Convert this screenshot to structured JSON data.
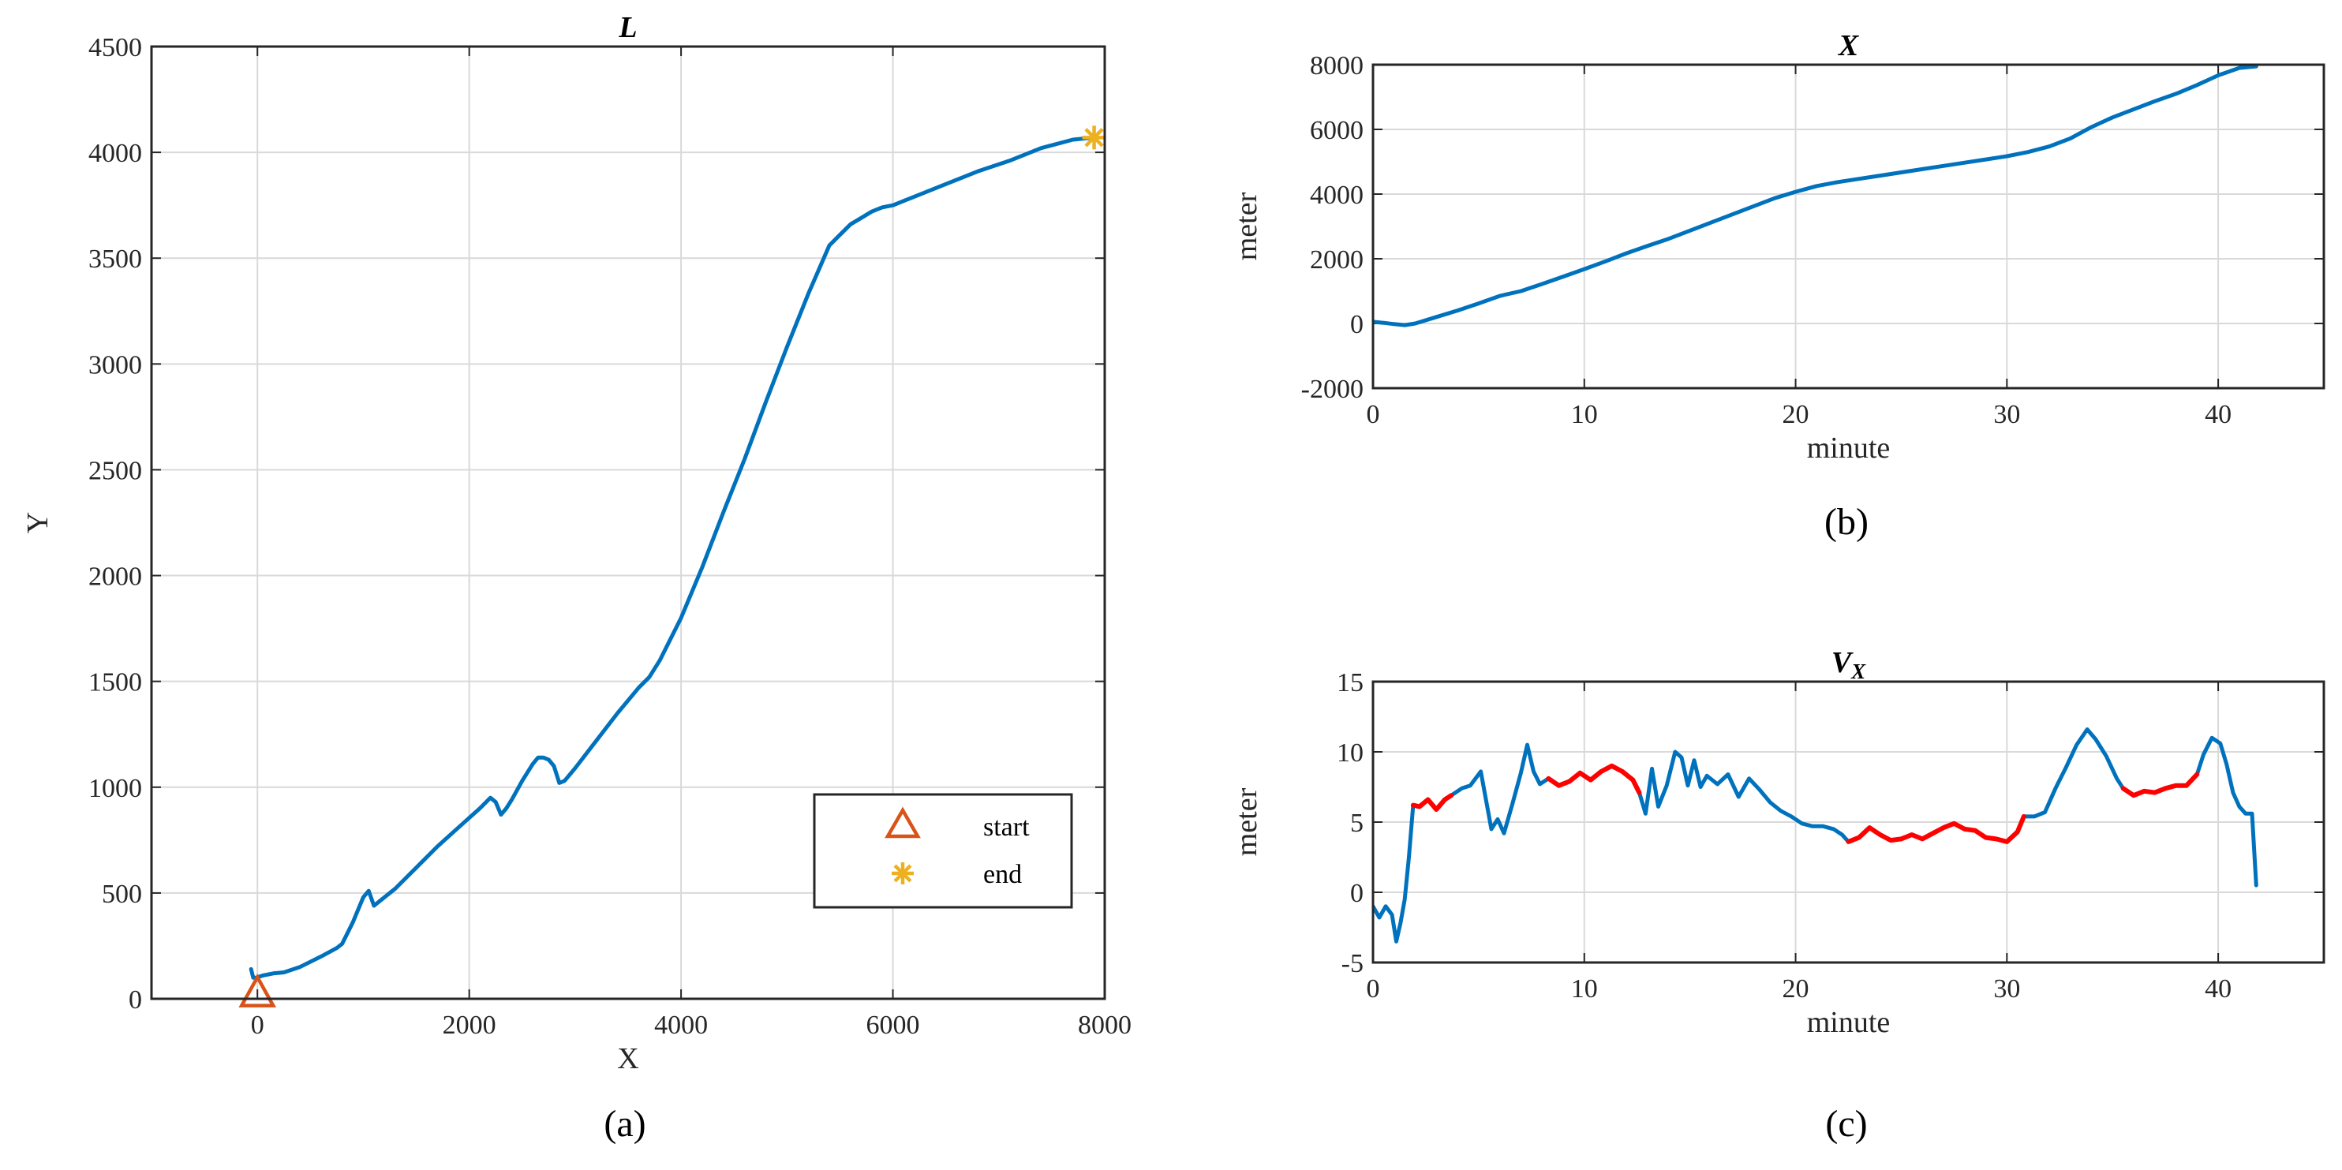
{
  "colors": {
    "line": "#0072BD",
    "highlight": "#FF0000",
    "start": "#D95319",
    "end": "#EDB120",
    "grid": "#D9D9D9"
  },
  "captions": {
    "a": "(a)",
    "b": "(b)",
    "c": "(c)"
  },
  "chart_data": [
    {
      "id": "a",
      "type": "line",
      "title": "L",
      "xlabel": "X",
      "ylabel": "Y",
      "xlim": [
        -1000,
        8000
      ],
      "ylim": [
        0,
        4500
      ],
      "xticks": [
        0,
        2000,
        4000,
        6000,
        8000
      ],
      "yticks": [
        0,
        500,
        1000,
        1500,
        2000,
        2500,
        3000,
        3500,
        4000,
        4500
      ],
      "grid": true,
      "legend": {
        "placement": "bottom-right",
        "entries": [
          {
            "label": "start",
            "marker": "triangle"
          },
          {
            "label": "end",
            "marker": "asterisk"
          }
        ]
      },
      "start_point": [
        0,
        20
      ],
      "end_point": [
        7900,
        4070
      ],
      "series": [
        {
          "name": "trajectory",
          "x": [
            -60,
            -40,
            -10,
            50,
            150,
            250,
            400,
            600,
            750,
            800,
            850,
            900,
            950,
            1000,
            1050,
            1100,
            1300,
            1500,
            1700,
            1900,
            2100,
            2200,
            2250,
            2300,
            2350,
            2400,
            2500,
            2600,
            2650,
            2700,
            2750,
            2800,
            2850,
            2900,
            3000,
            3200,
            3400,
            3600,
            3700,
            3800,
            3900,
            4000,
            4200,
            4400,
            4600,
            4800,
            5000,
            5200,
            5400,
            5500,
            5600,
            5700,
            5800,
            5900,
            6000,
            6200,
            6500,
            6800,
            7100,
            7400,
            7700,
            7900
          ],
          "y": [
            140,
            100,
            100,
            110,
            120,
            125,
            150,
            200,
            240,
            260,
            310,
            360,
            420,
            480,
            510,
            440,
            520,
            620,
            720,
            810,
            900,
            950,
            930,
            870,
            900,
            940,
            1030,
            1110,
            1140,
            1140,
            1130,
            1100,
            1020,
            1030,
            1090,
            1220,
            1350,
            1470,
            1520,
            1600,
            1700,
            1800,
            2040,
            2300,
            2550,
            2820,
            3080,
            3330,
            3560,
            3610,
            3660,
            3690,
            3720,
            3740,
            3750,
            3790,
            3850,
            3910,
            3960,
            4020,
            4060,
            4070
          ]
        }
      ]
    },
    {
      "id": "b",
      "type": "line",
      "title": "X",
      "xlabel": "minute",
      "ylabel": "meter",
      "xlim": [
        0,
        45
      ],
      "ylim": [
        -2000,
        8000
      ],
      "xticks": [
        0,
        10,
        20,
        30,
        40
      ],
      "yticks": [
        -2000,
        0,
        2000,
        4000,
        6000,
        8000
      ],
      "grid": true,
      "series": [
        {
          "name": "X",
          "x": [
            0,
            0.5,
            1,
            1.5,
            2,
            3,
            4,
            5,
            6,
            7,
            8,
            9,
            10,
            11,
            12,
            13,
            14,
            15,
            16,
            17,
            18,
            19,
            20,
            21,
            22,
            23,
            24,
            25,
            26,
            27,
            28,
            29,
            30,
            31,
            32,
            33,
            34,
            35,
            36,
            37,
            38,
            39,
            40,
            41,
            41.8
          ],
          "y": [
            50,
            20,
            -20,
            -50,
            0,
            200,
            400,
            620,
            850,
            1000,
            1220,
            1450,
            1680,
            1920,
            2170,
            2400,
            2620,
            2870,
            3120,
            3370,
            3620,
            3870,
            4070,
            4250,
            4370,
            4470,
            4570,
            4670,
            4770,
            4870,
            4970,
            5070,
            5170,
            5300,
            5470,
            5720,
            6070,
            6370,
            6620,
            6870,
            7100,
            7370,
            7670,
            7900,
            7950
          ]
        }
      ]
    },
    {
      "id": "c",
      "type": "line",
      "title": "VX",
      "title_main": "V",
      "title_sub": "X",
      "xlabel": "minute",
      "ylabel": "meter",
      "xlim": [
        0,
        45
      ],
      "ylim": [
        -5,
        15
      ],
      "xticks": [
        0,
        10,
        20,
        30,
        40
      ],
      "yticks": [
        -5,
        0,
        5,
        10,
        15
      ],
      "grid": true,
      "highlight_ranges": [
        [
          1.8,
          3.7
        ],
        [
          8.3,
          12.6
        ],
        [
          22.5,
          30.8
        ],
        [
          35.5,
          39.0
        ]
      ],
      "series": [
        {
          "name": "VX",
          "x": [
            0,
            0.3,
            0.6,
            0.9,
            1.1,
            1.3,
            1.5,
            1.7,
            1.9,
            2.2,
            2.6,
            3.0,
            3.4,
            3.7,
            4.2,
            4.6,
            5.1,
            5.6,
            5.9,
            6.2,
            6.6,
            7.0,
            7.3,
            7.6,
            7.9,
            8.3,
            8.8,
            9.3,
            9.8,
            10.3,
            10.8,
            11.3,
            11.8,
            12.3,
            12.6,
            12.9,
            13.2,
            13.5,
            13.9,
            14.3,
            14.6,
            14.9,
            15.2,
            15.5,
            15.8,
            16.3,
            16.8,
            17.3,
            17.8,
            18.3,
            18.8,
            19.3,
            19.8,
            20.3,
            20.8,
            21.3,
            21.8,
            22.2,
            22.5,
            23.0,
            23.5,
            24.0,
            24.5,
            25.0,
            25.5,
            26.0,
            26.5,
            27.0,
            27.5,
            28.0,
            28.5,
            29.0,
            29.5,
            30.0,
            30.5,
            30.8,
            31.3,
            31.8,
            32.3,
            32.8,
            33.3,
            33.8,
            34.2,
            34.7,
            35.2,
            35.5,
            36.0,
            36.5,
            37.0,
            37.5,
            38.0,
            38.5,
            39.0,
            39.3,
            39.7,
            40.1,
            40.4,
            40.7,
            41.0,
            41.3,
            41.6,
            41.8
          ],
          "y": [
            -1,
            -1.8,
            -1,
            -1.6,
            -3.5,
            -2.2,
            -0.5,
            2.5,
            6.2,
            6.1,
            6.6,
            5.9,
            6.6,
            6.9,
            7.4,
            7.6,
            8.6,
            4.5,
            5.2,
            4.2,
            6.3,
            8.5,
            10.5,
            8.6,
            7.7,
            8.1,
            7.6,
            7.9,
            8.5,
            8.0,
            8.6,
            9.0,
            8.6,
            8.0,
            7.1,
            5.6,
            8.8,
            6.1,
            7.6,
            10.0,
            9.6,
            7.6,
            9.4,
            7.5,
            8.3,
            7.7,
            8.4,
            6.8,
            8.1,
            7.3,
            6.4,
            5.8,
            5.4,
            4.9,
            4.7,
            4.7,
            4.5,
            4.1,
            3.6,
            3.9,
            4.6,
            4.1,
            3.7,
            3.8,
            4.1,
            3.8,
            4.2,
            4.6,
            4.9,
            4.5,
            4.4,
            3.9,
            3.8,
            3.6,
            4.3,
            5.4,
            5.4,
            5.7,
            7.4,
            8.9,
            10.5,
            11.6,
            10.9,
            9.7,
            8.1,
            7.4,
            6.9,
            7.2,
            7.1,
            7.4,
            7.6,
            7.6,
            8.4,
            9.8,
            11.0,
            10.6,
            9.1,
            7.1,
            6.1,
            5.6,
            5.6,
            0.5
          ]
        }
      ]
    }
  ]
}
